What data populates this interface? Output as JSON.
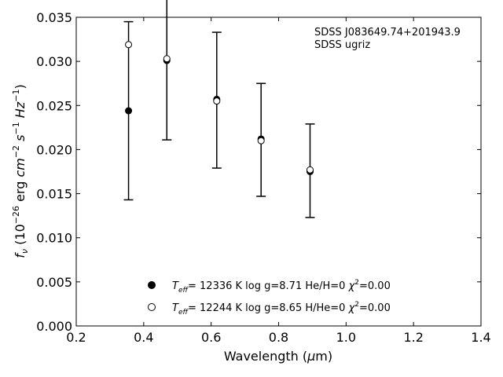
{
  "chart_data": {
    "type": "scatter",
    "xlabel": "Wavelength (μm)",
    "ylabel": "f_ν (10^-26 erg cm^-2 s^-1 Hz^-1)",
    "xlim": [
      0.2,
      1.4
    ],
    "ylim": [
      0.0,
      0.035
    ],
    "xticks": [
      "0.2",
      "0.4",
      "0.6",
      "0.8",
      "1.0",
      "1.2",
      "1.4"
    ],
    "yticks": [
      "0.000",
      "0.005",
      "0.010",
      "0.015",
      "0.020",
      "0.025",
      "0.030",
      "0.035"
    ],
    "annotation": [
      "SDSS J083649.74+201943.9",
      "SDSS ugriz"
    ],
    "observed": {
      "x": [
        0.3551,
        0.4686,
        0.6166,
        0.748,
        0.8932
      ],
      "y": [
        0.0244,
        0.0302,
        0.0256,
        0.0211,
        0.0176
      ],
      "yerr": [
        0.0101,
        0.0091,
        0.0077,
        0.0064,
        0.0053
      ]
    },
    "series": [
      {
        "name": "T_eff= 12336 K  log g=8.71  He/H=0  χ²=0.00",
        "marker": "filled",
        "x": [
          0.3551,
          0.4686,
          0.6166,
          0.748,
          0.8932
        ],
        "y": [
          0.0244,
          0.0301,
          0.0257,
          0.0212,
          0.0175
        ]
      },
      {
        "name": "T_eff= 12244 K  log g=8.65  H/He=0  χ²=0.00",
        "marker": "open",
        "x": [
          0.3551,
          0.4686,
          0.6166,
          0.748,
          0.8932
        ],
        "y": [
          0.0319,
          0.0303,
          0.0255,
          0.021,
          0.0177
        ]
      }
    ]
  }
}
